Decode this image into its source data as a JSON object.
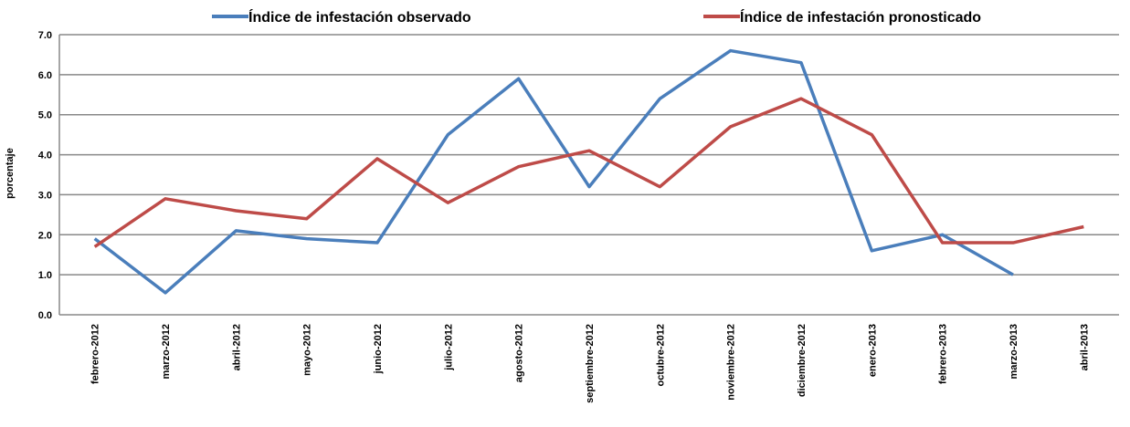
{
  "chart_data": {
    "type": "line",
    "y_label": "porcentaje",
    "categories": [
      "febrero-2012",
      "marzo-2012",
      "abril-2012",
      "mayo-2012",
      "junio-2012",
      "julio-2012",
      "agosto-2012",
      "septiembre-2012",
      "octubre-2012",
      "noviembre-2012",
      "diciembre-2012",
      "enero-2013",
      "febrero-2013",
      "marzo-2013",
      "abril-2013"
    ],
    "series": [
      {
        "name": "Índice de infestación observado",
        "color": "#4a7ebb",
        "values": [
          1.9,
          0.55,
          2.1,
          1.9,
          1.8,
          4.5,
          5.9,
          3.2,
          5.4,
          6.6,
          6.3,
          1.6,
          2.0,
          1.0,
          null
        ]
      },
      {
        "name": "Índice de infestación pronosticado",
        "color": "#be4b48",
        "values": [
          1.7,
          2.9,
          2.6,
          2.4,
          3.9,
          2.8,
          3.7,
          4.1,
          3.2,
          4.7,
          5.4,
          4.5,
          1.8,
          1.8,
          2.2
        ]
      }
    ],
    "ylim": [
      0,
      7
    ],
    "yticks": [
      {
        "value": 0,
        "label": "0.0"
      },
      {
        "value": 1,
        "label": "1.0"
      },
      {
        "value": 2,
        "label": "2.0"
      },
      {
        "value": 3,
        "label": "3.0"
      },
      {
        "value": 4,
        "label": "4.0"
      },
      {
        "value": 5,
        "label": "5.0"
      },
      {
        "value": 6,
        "label": "6.0"
      },
      {
        "value": 7,
        "label": "7.0"
      }
    ],
    "grid": true
  }
}
